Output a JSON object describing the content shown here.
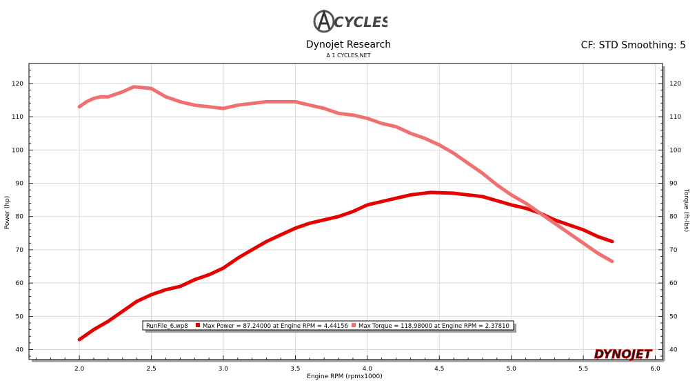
{
  "header": {
    "logo_text": "CYCLES",
    "title": "Dynojet Research",
    "subtitle": "A 1 CYCLES.NET",
    "correction": "CF: STD Smoothing: 5"
  },
  "brand": {
    "watermark_text": "DYNOJET"
  },
  "colors": {
    "power": "#e60000",
    "torque": "#f07070",
    "grid": "#d8d8d8",
    "frame": "#000000"
  },
  "chart_data": {
    "type": "line",
    "xlabel": "Engine RPM (rpmx1000)",
    "ylabel": "Power (hp)",
    "y2label": "Torque (ft-lbs)",
    "xlim": [
      1.65,
      6.05
    ],
    "ylim": [
      37,
      126
    ],
    "y2lim": [
      37,
      126
    ],
    "x_ticks": [
      "2.0",
      "2.5",
      "3.0",
      "3.5",
      "4.0",
      "4.5",
      "5.0",
      "5.5",
      "6.0"
    ],
    "y_ticks": [
      "40",
      "50",
      "60",
      "70",
      "80",
      "90",
      "100",
      "110",
      "120"
    ],
    "y2_ticks": [
      "40",
      "50",
      "60",
      "70",
      "80",
      "90",
      "100",
      "110",
      "120"
    ],
    "grid": true,
    "legend": {
      "run_file": "RunFile_6.wp8",
      "position": "bottom-center"
    },
    "series": [
      {
        "name": "Max Power = 87.24000 at Engine RPM = 4.44156",
        "axis": "left",
        "x": [
          2.0,
          2.1,
          2.2,
          2.3,
          2.4,
          2.5,
          2.6,
          2.7,
          2.8,
          2.9,
          3.0,
          3.1,
          3.2,
          3.3,
          3.4,
          3.5,
          3.6,
          3.7,
          3.8,
          3.9,
          4.0,
          4.1,
          4.2,
          4.3,
          4.44,
          4.6,
          4.8,
          5.0,
          5.1,
          5.2,
          5.3,
          5.4,
          5.5,
          5.6,
          5.7
        ],
        "values": [
          43.0,
          46.0,
          48.5,
          51.5,
          54.5,
          56.5,
          58.0,
          59.0,
          61.0,
          62.5,
          64.5,
          67.5,
          70.0,
          72.5,
          74.5,
          76.5,
          78.0,
          79.0,
          80.0,
          81.5,
          83.5,
          84.5,
          85.5,
          86.5,
          87.24,
          87.0,
          86.0,
          83.5,
          82.5,
          81.0,
          79.0,
          77.5,
          76.0,
          74.0,
          72.5
        ]
      },
      {
        "name": "Max Torque = 118.98000 at Engine RPM = 2.37810",
        "axis": "right",
        "x": [
          2.0,
          2.05,
          2.1,
          2.15,
          2.2,
          2.3,
          2.378,
          2.5,
          2.6,
          2.7,
          2.8,
          2.9,
          3.0,
          3.1,
          3.2,
          3.3,
          3.4,
          3.5,
          3.6,
          3.7,
          3.8,
          3.9,
          4.0,
          4.1,
          4.2,
          4.3,
          4.4,
          4.5,
          4.6,
          4.7,
          4.8,
          4.9,
          5.0,
          5.1,
          5.2,
          5.3,
          5.4,
          5.5,
          5.6,
          5.7
        ],
        "values": [
          113.0,
          114.5,
          115.5,
          116.0,
          116.0,
          117.5,
          118.98,
          118.5,
          116.0,
          114.5,
          113.5,
          113.0,
          112.5,
          113.5,
          114.0,
          114.5,
          114.5,
          114.5,
          113.5,
          112.5,
          111.0,
          110.5,
          109.5,
          108.0,
          107.0,
          105.0,
          103.5,
          101.5,
          99.0,
          96.0,
          93.0,
          89.5,
          86.5,
          84.0,
          81.0,
          78.0,
          75.0,
          72.0,
          69.0,
          66.5
        ]
      }
    ]
  }
}
